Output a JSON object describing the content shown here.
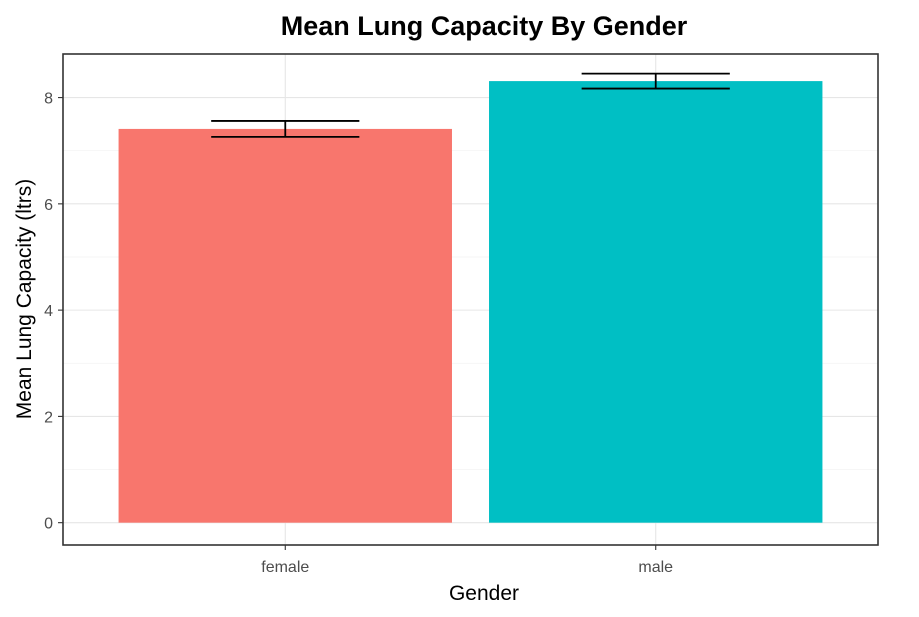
{
  "chart_data": {
    "type": "bar",
    "title": "Mean Lung Capacity By Gender",
    "xlabel": "Gender",
    "ylabel": "Mean Lung Capacity (ltrs)",
    "categories": [
      "female",
      "male"
    ],
    "values": [
      7.41,
      8.31
    ],
    "error_low": [
      7.26,
      8.17
    ],
    "error_high": [
      7.56,
      8.45
    ],
    "colors": [
      "#F8766D",
      "#00BFC4"
    ],
    "ylim": [
      -0.42,
      8.82
    ],
    "yticks": [
      0,
      2,
      4,
      6,
      8
    ],
    "ytick_labels": [
      "0",
      "2",
      "4",
      "6",
      "8"
    ],
    "grid": true,
    "legend": "none"
  }
}
